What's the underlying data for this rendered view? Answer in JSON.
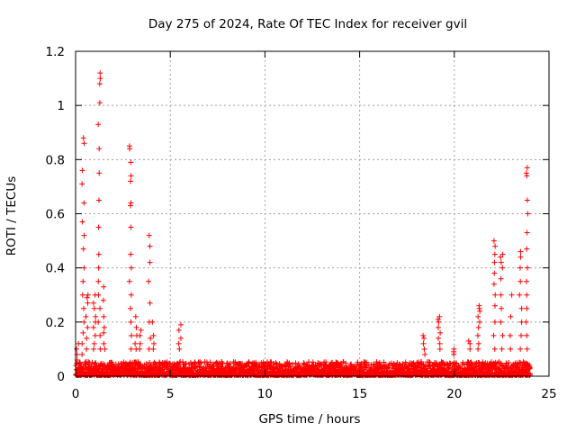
{
  "chart_data": {
    "type": "scatter",
    "title": "Day 275 of 2024, Rate Of TEC Index for receiver gvil",
    "xlabel": "GPS time / hours",
    "ylabel": "ROTI / TECUs",
    "xlim": [
      0,
      25
    ],
    "ylim": [
      0,
      1.2
    ],
    "xticks": [
      0,
      5,
      10,
      15,
      20,
      25
    ],
    "xtick_labels": [
      "0",
      "5",
      "10",
      "15",
      "20",
      "25"
    ],
    "yticks": [
      0,
      0.2,
      0.4,
      0.6,
      0.8,
      1.0,
      1.2
    ],
    "ytick_labels": [
      "0",
      "0.2",
      "0.4",
      "0.6",
      "0.8",
      "1",
      "1.2"
    ],
    "grid": true,
    "marker": "+",
    "series_color": "#ff0000",
    "background_level": {
      "x_start": 0,
      "x_end": 24,
      "typical_max": 0.05
    },
    "spikes": [
      {
        "x": 0.1,
        "values": [
          0.12,
          0.1,
          0.08,
          0.06
        ]
      },
      {
        "x": 0.4,
        "values": [
          0.88,
          0.86,
          0.76,
          0.71,
          0.64,
          0.57,
          0.52,
          0.47,
          0.4,
          0.35,
          0.3,
          0.25,
          0.2,
          0.16,
          0.12,
          0.08
        ]
      },
      {
        "x": 0.6,
        "values": [
          0.3,
          0.29,
          0.27,
          0.22,
          0.18,
          0.14,
          0.1
        ]
      },
      {
        "x": 1.0,
        "values": [
          0.3,
          0.27,
          0.25,
          0.22,
          0.2,
          0.18,
          0.15,
          0.12,
          0.1
        ]
      },
      {
        "x": 1.25,
        "values": [
          1.12,
          1.1,
          1.08,
          1.01,
          0.93,
          0.84,
          0.75,
          0.65,
          0.55,
          0.45,
          0.4,
          0.35,
          0.3,
          0.25,
          0.2,
          0.15,
          0.1
        ]
      },
      {
        "x": 1.5,
        "values": [
          0.33,
          0.28,
          0.22,
          0.18,
          0.16,
          0.12,
          0.1
        ]
      },
      {
        "x": 2.9,
        "values": [
          0.85,
          0.84,
          0.79,
          0.74,
          0.72,
          0.64,
          0.63,
          0.55,
          0.45,
          0.4,
          0.35,
          0.3,
          0.25,
          0.2,
          0.15,
          0.1
        ]
      },
      {
        "x": 3.2,
        "values": [
          0.22,
          0.18,
          0.15,
          0.12,
          0.1
        ]
      },
      {
        "x": 3.4,
        "values": [
          0.17,
          0.15,
          0.12,
          0.1
        ]
      },
      {
        "x": 3.9,
        "values": [
          0.52,
          0.48,
          0.42,
          0.35,
          0.27,
          0.2,
          0.14,
          0.1
        ]
      },
      {
        "x": 4.1,
        "values": [
          0.2,
          0.15,
          0.12,
          0.1
        ]
      },
      {
        "x": 5.5,
        "values": [
          0.19,
          0.17,
          0.14,
          0.12,
          0.1
        ]
      },
      {
        "x": 18.4,
        "values": [
          0.15,
          0.14,
          0.12,
          0.1,
          0.08
        ]
      },
      {
        "x": 19.2,
        "values": [
          0.22,
          0.21,
          0.2,
          0.18,
          0.16,
          0.14,
          0.12,
          0.1
        ]
      },
      {
        "x": 20.0,
        "values": [
          0.1,
          0.09,
          0.08
        ]
      },
      {
        "x": 20.8,
        "values": [
          0.13,
          0.12,
          0.1
        ]
      },
      {
        "x": 21.3,
        "values": [
          0.26,
          0.25,
          0.24,
          0.22,
          0.2,
          0.18,
          0.15,
          0.12,
          0.1
        ]
      },
      {
        "x": 22.1,
        "values": [
          0.5,
          0.48,
          0.45,
          0.42,
          0.38,
          0.34,
          0.3,
          0.26,
          0.2,
          0.15,
          0.1
        ]
      },
      {
        "x": 22.5,
        "values": [
          0.45,
          0.44,
          0.42,
          0.4,
          0.36,
          0.3,
          0.25,
          0.2,
          0.15,
          0.1
        ]
      },
      {
        "x": 23.0,
        "values": [
          0.3,
          0.22,
          0.15,
          0.1
        ]
      },
      {
        "x": 23.5,
        "values": [
          0.46,
          0.44,
          0.4,
          0.35,
          0.3,
          0.25,
          0.2,
          0.15,
          0.1
        ]
      },
      {
        "x": 23.85,
        "values": [
          0.77,
          0.75,
          0.74,
          0.65,
          0.6,
          0.53,
          0.47,
          0.4,
          0.35,
          0.3,
          0.25,
          0.2,
          0.15,
          0.1
        ]
      }
    ]
  }
}
